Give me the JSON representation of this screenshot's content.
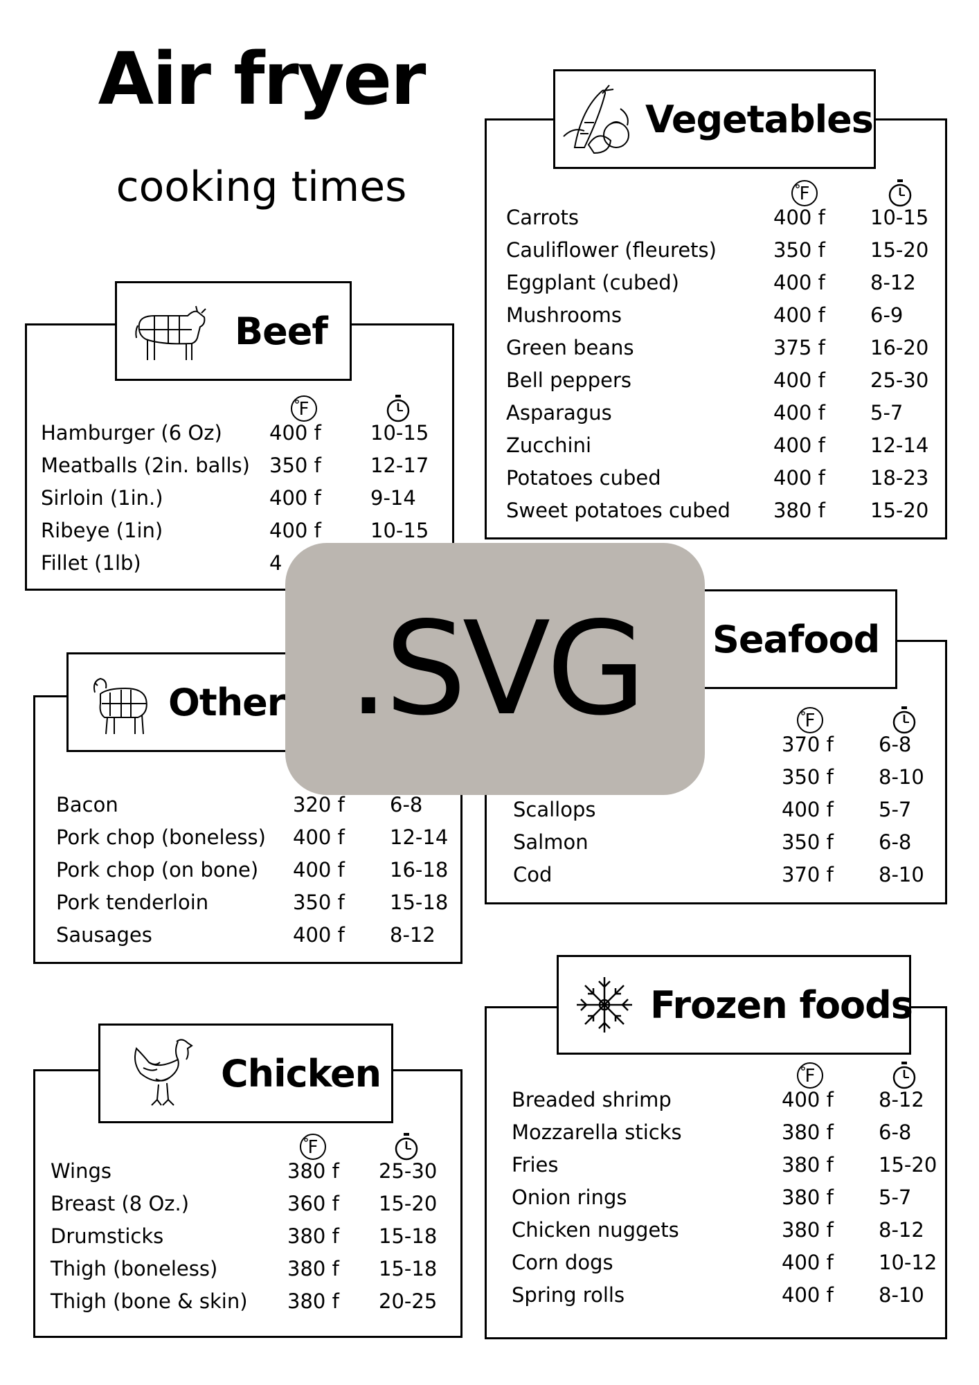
{
  "title": {
    "main": "Air fryer",
    "sub": "cooking times"
  },
  "overlay_label": ".SVG",
  "sections": {
    "beef": {
      "heading": "Beef",
      "icon": "cow-icon",
      "rows": [
        {
          "item": "Hamburger (6 Oz)",
          "temp": "400 f",
          "time": "10-15"
        },
        {
          "item": "Meatballs (2in. balls)",
          "temp": "350 f",
          "time": "12-17"
        },
        {
          "item": "Sirloin (1in.)",
          "temp": "400 f",
          "time": "9-14"
        },
        {
          "item": "Ribeye (1in)",
          "temp": "400 f",
          "time": "10-15"
        },
        {
          "item": "Fillet (1lb)",
          "temp": "4",
          "time": ""
        }
      ]
    },
    "vegetables": {
      "heading": "Vegetables",
      "icon": "vegetables-icon",
      "rows": [
        {
          "item": "Carrots",
          "temp": "400 f",
          "time": "10-15"
        },
        {
          "item": "Cauliflower (fleurets)",
          "temp": "350 f",
          "time": "15-20"
        },
        {
          "item": "Eggplant (cubed)",
          "temp": "400 f",
          "time": "8-12"
        },
        {
          "item": "Mushrooms",
          "temp": "400 f",
          "time": "6-9"
        },
        {
          "item": "Green beans",
          "temp": "375 f",
          "time": "16-20"
        },
        {
          "item": "Bell peppers",
          "temp": "400 f",
          "time": "25-30"
        },
        {
          "item": "Asparagus",
          "temp": "400 f",
          "time": "5-7"
        },
        {
          "item": "Zucchini",
          "temp": "400 f",
          "time": "12-14"
        },
        {
          "item": "Potatoes cubed",
          "temp": "400 f",
          "time": "18-23"
        },
        {
          "item": "Sweet potatoes cubed",
          "temp": "380 f",
          "time": "15-20"
        }
      ]
    },
    "other": {
      "heading": "Other",
      "icon": "sheep-icon",
      "rows": [
        {
          "item": "Bacon",
          "temp": "320 f",
          "time": "6-8"
        },
        {
          "item": "Pork chop (boneless)",
          "temp": "400 f",
          "time": "12-14"
        },
        {
          "item": "Pork chop (on bone)",
          "temp": "400 f",
          "time": "16-18"
        },
        {
          "item": "Pork tenderloin",
          "temp": "350 f",
          "time": "15-18"
        },
        {
          "item": "Sausages",
          "temp": "400 f",
          "time": "8-12"
        }
      ]
    },
    "seafood": {
      "heading": "Seafood",
      "icon": "fish-icon",
      "rows": [
        {
          "item": "",
          "temp": "370 f",
          "time": "6-8"
        },
        {
          "item": "",
          "temp": "350 f",
          "time": "8-10"
        },
        {
          "item": "Scallops",
          "temp": "400 f",
          "time": "5-7"
        },
        {
          "item": "Salmon",
          "temp": "350 f",
          "time": "6-8"
        },
        {
          "item": "Cod",
          "temp": "370 f",
          "time": "8-10"
        }
      ]
    },
    "chicken": {
      "heading": "Chicken",
      "icon": "hen-icon",
      "rows": [
        {
          "item": "Wings",
          "temp": "380 f",
          "time": "25-30"
        },
        {
          "item": "Breast (8 Oz.)",
          "temp": "360 f",
          "time": "15-20"
        },
        {
          "item": "Drumsticks",
          "temp": "380 f",
          "time": "15-18"
        },
        {
          "item": "Thigh (boneless)",
          "temp": "380 f",
          "time": "15-18"
        },
        {
          "item": "Thigh (bone & skin)",
          "temp": "380 f",
          "time": "20-25"
        }
      ]
    },
    "frozen": {
      "heading": "Frozen foods",
      "icon": "snowflake-icon",
      "rows": [
        {
          "item": "Breaded shrimp",
          "temp": "400 f",
          "time": "8-12"
        },
        {
          "item": "Mozzarella sticks",
          "temp": "380 f",
          "time": "6-8"
        },
        {
          "item": "Fries",
          "temp": "380 f",
          "time": "15-20"
        },
        {
          "item": "Onion rings",
          "temp": "380 f",
          "time": "5-7"
        },
        {
          "item": "Chicken nuggets",
          "temp": "380 f",
          "time": "8-12"
        },
        {
          "item": "Corn dogs",
          "temp": "400 f",
          "time": "10-12"
        },
        {
          "item": "Spring rolls",
          "temp": "400 f",
          "time": "8-10"
        }
      ]
    }
  },
  "column_icons": {
    "temperature": "fahrenheit-icon",
    "time": "stopwatch-icon",
    "fahrenheit_letter": "F"
  }
}
